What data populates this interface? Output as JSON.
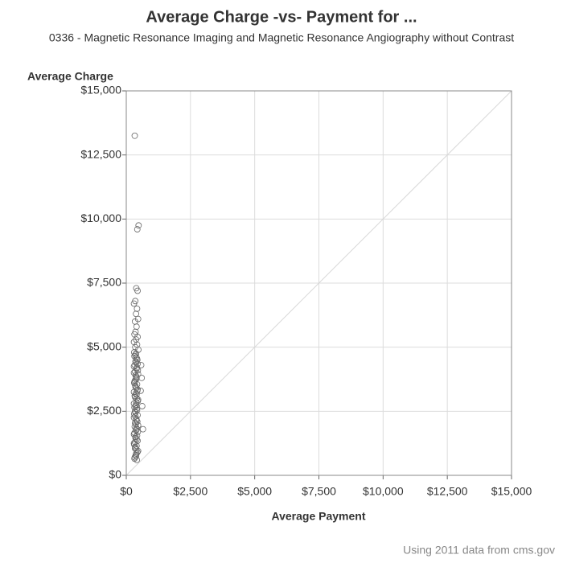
{
  "chart_data": {
    "type": "scatter",
    "title": "Average Charge -vs- Payment for ...",
    "subtitle": "0336 - Magnetic Resonance Imaging and Magnetic Resonance Angiography without Contrast",
    "y_label": "Average Charge",
    "x_label": "Average Payment",
    "footnote": "Using 2011 data from cms.gov",
    "xlim": [
      0,
      15000
    ],
    "ylim": [
      0,
      15000
    ],
    "xticks": [
      {
        "value": 0,
        "label": "$0"
      },
      {
        "value": 2500,
        "label": "$2,500"
      },
      {
        "value": 5000,
        "label": "$5,000"
      },
      {
        "value": 7500,
        "label": "$7,500"
      },
      {
        "value": 10000,
        "label": "$10,000"
      },
      {
        "value": 12500,
        "label": "$12,500"
      },
      {
        "value": 15000,
        "label": "$15,000"
      }
    ],
    "yticks": [
      {
        "value": 0,
        "label": "$0"
      },
      {
        "value": 2500,
        "label": "$2,500"
      },
      {
        "value": 5000,
        "label": "$5,000"
      },
      {
        "value": 7500,
        "label": "$7,500"
      },
      {
        "value": 10000,
        "label": "$10,000"
      },
      {
        "value": 12500,
        "label": "$12,500"
      },
      {
        "value": 15000,
        "label": "$15,000"
      }
    ],
    "grid": true,
    "color": "#666666",
    "x": [
      330,
      480,
      430,
      390,
      440,
      350,
      300,
      420,
      380,
      460,
      340,
      400,
      360,
      320,
      440,
      380,
      300,
      420,
      350,
      470,
      310,
      350,
      390,
      430,
      370,
      330,
      410,
      450,
      300,
      360,
      400,
      340,
      310,
      350,
      390,
      430,
      370,
      330,
      410,
      450,
      300,
      360,
      400,
      340,
      310,
      350,
      390,
      430,
      370,
      330,
      410,
      450,
      300,
      360,
      400,
      340,
      310,
      350,
      390,
      430,
      370,
      330,
      410,
      380,
      320,
      420,
      360,
      440,
      300,
      400,
      340,
      460,
      390,
      380,
      320,
      420,
      360,
      440,
      300,
      400,
      340,
      460,
      390,
      380,
      320,
      420,
      360,
      440,
      300,
      400,
      340,
      460,
      390,
      380,
      320,
      420,
      360,
      440,
      300,
      400,
      340,
      460,
      390,
      380,
      320,
      600,
      620,
      560,
      650,
      580
    ],
    "y": [
      13250,
      9750,
      9600,
      7300,
      7200,
      6800,
      6700,
      6500,
      6300,
      6100,
      6000,
      5800,
      5600,
      5500,
      5400,
      5300,
      5200,
      5100,
      5000,
      4900,
      4800,
      4700,
      4600,
      4500,
      4400,
      4300,
      4200,
      4100,
      4000,
      3900,
      3800,
      3700,
      3600,
      3500,
      3400,
      3300,
      3200,
      3100,
      3000,
      2900,
      2800,
      2700,
      2600,
      2500,
      2400,
      2300,
      2200,
      2100,
      2000,
      1900,
      1800,
      1700,
      1600,
      1500,
      1400,
      1300,
      1200,
      1100,
      1000,
      900,
      800,
      700,
      600,
      4750,
      4650,
      4550,
      4450,
      4350,
      4250,
      4150,
      4050,
      3950,
      3850,
      3750,
      3650,
      3550,
      3450,
      3350,
      3250,
      3150,
      3050,
      2950,
      2850,
      2750,
      2650,
      2550,
      2450,
      2350,
      2250,
      2150,
      2050,
      1950,
      1850,
      1750,
      1650,
      1550,
      1450,
      1350,
      1250,
      1150,
      1050,
      950,
      850,
      750,
      650,
      3800,
      2700,
      3300,
      1800,
      4300
    ]
  }
}
